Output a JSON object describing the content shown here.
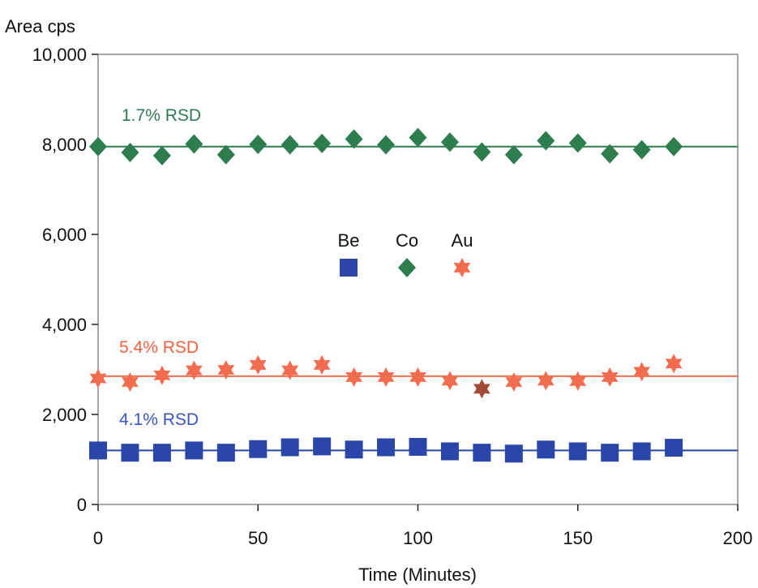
{
  "chart_data": {
    "type": "scatter",
    "ylabel": "Area cps",
    "xlabel": "Time (Minutes)",
    "xlim": [
      0,
      200
    ],
    "ylim": [
      0,
      10000
    ],
    "x_ticks": [
      0,
      50,
      100,
      150,
      200
    ],
    "y_ticks": [
      0,
      2000,
      4000,
      6000,
      8000,
      10000
    ],
    "x_tick_labels": [
      "0",
      "50",
      "100",
      "150",
      "200"
    ],
    "y_tick_labels": [
      "0",
      "2,000",
      "4,000",
      "6,000",
      "8,000",
      "10,000"
    ],
    "grid": false,
    "legend_position": "center",
    "series": [
      {
        "name": "Be",
        "marker": "square",
        "color": "#2a46a8",
        "rsd_label": "4.1% RSD",
        "label_color": "#3a55c0",
        "mean_line": 1200,
        "x": [
          0,
          10,
          20,
          30,
          40,
          50,
          60,
          70,
          80,
          90,
          100,
          110,
          120,
          130,
          140,
          150,
          160,
          170,
          180
        ],
        "y": [
          1200,
          1150,
          1150,
          1200,
          1150,
          1230,
          1270,
          1290,
          1220,
          1270,
          1280,
          1180,
          1150,
          1130,
          1220,
          1180,
          1150,
          1180,
          1260
        ]
      },
      {
        "name": "Co",
        "marker": "diamond",
        "color": "#2e7d4f",
        "rsd_label": "1.7% RSD",
        "label_color": "#2f7a57",
        "mean_line": 7950,
        "x": [
          0,
          10,
          20,
          30,
          40,
          50,
          60,
          70,
          80,
          90,
          100,
          110,
          120,
          130,
          140,
          150,
          160,
          170,
          180
        ],
        "y": [
          7950,
          7820,
          7750,
          8010,
          7770,
          8000,
          7990,
          8020,
          8120,
          7990,
          8150,
          8050,
          7830,
          7770,
          8080,
          8030,
          7790,
          7880,
          7950
        ]
      },
      {
        "name": "Au",
        "marker": "star",
        "color": "#f26d4f",
        "rsd_label": "5.4% RSD",
        "label_color": "#f0603f",
        "mean_line": 2850,
        "x": [
          0,
          10,
          20,
          30,
          40,
          50,
          60,
          70,
          80,
          90,
          100,
          110,
          120,
          130,
          140,
          150,
          160,
          170,
          180
        ],
        "y": [
          2800,
          2720,
          2870,
          2980,
          2990,
          3100,
          2980,
          3100,
          2830,
          2830,
          2830,
          2750,
          2570,
          2720,
          2750,
          2740,
          2830,
          2950,
          3130
        ],
        "highlight_index": 12,
        "highlight_color": "#a24a35"
      }
    ]
  }
}
